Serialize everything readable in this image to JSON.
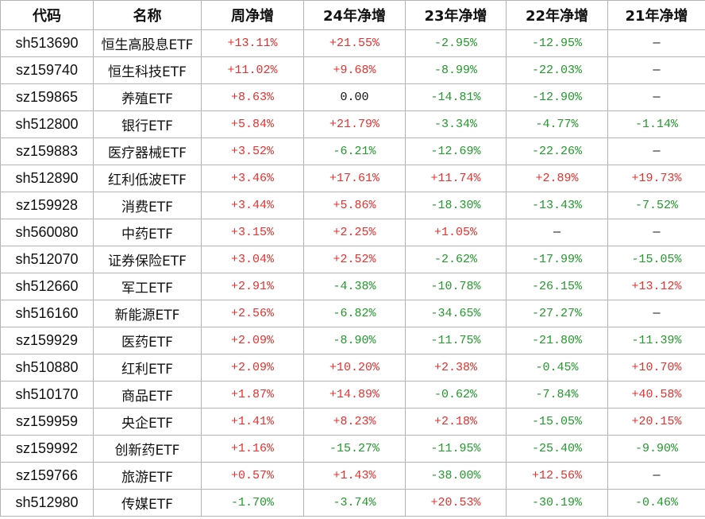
{
  "table": {
    "header": [
      "代码",
      "名称",
      "周净增",
      "24年净增",
      "23年净增",
      "22年净增",
      "21年净增"
    ],
    "rows": [
      [
        "sh513690",
        "恒生高股息ETF",
        "+13.11%",
        "+21.55%",
        "-2.95%",
        "-12.95%",
        "—"
      ],
      [
        "sz159740",
        "恒生科技ETF",
        "+11.02%",
        "+9.68%",
        "-8.99%",
        "-22.03%",
        "—"
      ],
      [
        "sz159865",
        "养殖ETF",
        "+8.63%",
        "0.00",
        "-14.81%",
        "-12.90%",
        "—"
      ],
      [
        "sh512800",
        "银行ETF",
        "+5.84%",
        "+21.79%",
        "-3.34%",
        "-4.77%",
        "-1.14%"
      ],
      [
        "sz159883",
        "医疗器械ETF",
        "+3.52%",
        "-6.21%",
        "-12.69%",
        "-22.26%",
        "—"
      ],
      [
        "sh512890",
        "红利低波ETF",
        "+3.46%",
        "+17.61%",
        "+11.74%",
        "+2.89%",
        "+19.73%"
      ],
      [
        "sz159928",
        "消费ETF",
        "+3.44%",
        "+5.86%",
        "-18.30%",
        "-13.43%",
        "-7.52%"
      ],
      [
        "sh560080",
        "中药ETF",
        "+3.15%",
        "+2.25%",
        "+1.05%",
        "—",
        "—"
      ],
      [
        "sh512070",
        "证券保险ETF",
        "+3.04%",
        "+2.52%",
        "-2.62%",
        "-17.99%",
        "-15.05%"
      ],
      [
        "sh512660",
        "军工ETF",
        "+2.91%",
        "-4.38%",
        "-10.78%",
        "-26.15%",
        "+13.12%"
      ],
      [
        "sh516160",
        "新能源ETF",
        "+2.56%",
        "-6.82%",
        "-34.65%",
        "-27.27%",
        "—"
      ],
      [
        "sz159929",
        "医药ETF",
        "+2.09%",
        "-8.90%",
        "-11.75%",
        "-21.80%",
        "-11.39%"
      ],
      [
        "sh510880",
        "红利ETF",
        "+2.09%",
        "+10.20%",
        "+2.38%",
        "-0.45%",
        "+10.70%"
      ],
      [
        "sh510170",
        "商品ETF",
        "+1.87%",
        "+14.89%",
        "-0.62%",
        "-7.84%",
        "+40.58%"
      ],
      [
        "sz159959",
        "央企ETF",
        "+1.41%",
        "+8.23%",
        "+2.18%",
        "-15.05%",
        "+20.15%"
      ],
      [
        "sz159992",
        "创新药ETF",
        "+1.16%",
        "-15.27%",
        "-11.95%",
        "-25.40%",
        "-9.90%"
      ],
      [
        "sz159766",
        "旅游ETF",
        "+0.57%",
        "+1.43%",
        "-38.00%",
        "+12.56%",
        "—"
      ],
      [
        "sh512980",
        "传媒ETF",
        "-1.70%",
        "-3.74%",
        "+20.53%",
        "-30.19%",
        "-0.46%"
      ]
    ]
  }
}
